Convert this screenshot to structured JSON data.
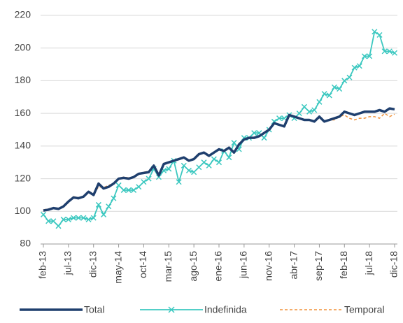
{
  "chart_data": {
    "type": "line",
    "categories": [
      "feb-13",
      null,
      null,
      null,
      null,
      "jul-13",
      null,
      null,
      null,
      null,
      "dic-13",
      null,
      null,
      null,
      null,
      "may-14",
      null,
      null,
      null,
      null,
      "oct-14",
      null,
      null,
      null,
      null,
      "mar-15",
      null,
      null,
      null,
      null,
      "ago-15",
      null,
      null,
      null,
      null,
      "ene-16",
      null,
      null,
      null,
      null,
      "jun-16",
      null,
      null,
      null,
      null,
      "nov-16",
      null,
      null,
      null,
      null,
      "abr-17",
      null,
      null,
      null,
      null,
      "sep-17",
      null,
      null,
      null,
      null,
      "feb-18",
      null,
      null,
      null,
      null,
      "jul-18",
      null,
      null,
      null,
      null,
      "dic-18"
    ],
    "series": [
      {
        "name": "Total",
        "color": "#1f3f6e",
        "line_width": 3.5,
        "line_style": "solid",
        "marker": "none",
        "values": [
          100.5,
          101,
          102,
          101.5,
          103,
          106,
          108.5,
          108,
          109,
          112,
          110,
          117,
          114,
          115,
          117,
          120,
          120.5,
          120,
          121,
          123,
          123.5,
          124,
          128,
          122,
          129,
          130,
          131,
          132,
          133,
          131,
          132,
          135,
          136,
          134,
          136,
          138,
          137,
          139,
          136,
          141,
          144,
          145,
          145,
          146,
          148,
          150,
          154,
          153,
          152,
          159,
          158,
          157,
          156,
          156,
          155,
          158,
          155,
          156,
          157,
          158,
          161,
          160,
          159,
          160,
          161,
          161,
          161,
          162,
          161,
          163,
          162.5
        ]
      },
      {
        "name": "Indefinida",
        "color": "#3cc8c0",
        "line_width": 1.8,
        "line_style": "solid",
        "marker": "x",
        "values": [
          98,
          94,
          94,
          91,
          95,
          95,
          96,
          96,
          96,
          95,
          96,
          104,
          98,
          103,
          108,
          116,
          113,
          113,
          113,
          115,
          118,
          120,
          126,
          121,
          125,
          126,
          131,
          118,
          128,
          125,
          124,
          127,
          130,
          128,
          132,
          130,
          137,
          133,
          142,
          138,
          145,
          145,
          148,
          148,
          145,
          150,
          155,
          157,
          157,
          159,
          157,
          160,
          164,
          161,
          162,
          167,
          172,
          171,
          176,
          175,
          180,
          182,
          188,
          189,
          195,
          195,
          210,
          208,
          198,
          198,
          197
        ]
      },
      {
        "name": "Temporal",
        "color": "#f0923a",
        "line_width": 1.5,
        "line_style": "dashed",
        "marker": "none",
        "values": [
          101,
          101.5,
          102,
          101.5,
          103.5,
          106,
          109,
          108.5,
          109,
          112.5,
          110.5,
          115,
          114.5,
          116,
          117,
          120,
          121,
          120.5,
          121,
          123,
          124,
          124.5,
          128,
          122,
          129.5,
          130,
          131,
          132.5,
          133,
          131.5,
          132,
          135.5,
          136,
          134,
          136.5,
          138,
          137.5,
          139,
          136.5,
          141,
          144,
          145,
          145.5,
          146,
          148,
          150,
          153.5,
          153,
          152,
          158,
          158,
          157,
          156,
          156,
          155,
          157.5,
          155,
          156,
          156,
          158,
          159,
          157,
          156,
          157,
          157,
          158,
          158,
          157,
          160,
          158,
          159.5
        ]
      }
    ],
    "ylim": [
      80,
      220
    ],
    "yticks": [
      80,
      100,
      120,
      140,
      160,
      180,
      200,
      220
    ],
    "grid": true,
    "legend": "bottom"
  }
}
